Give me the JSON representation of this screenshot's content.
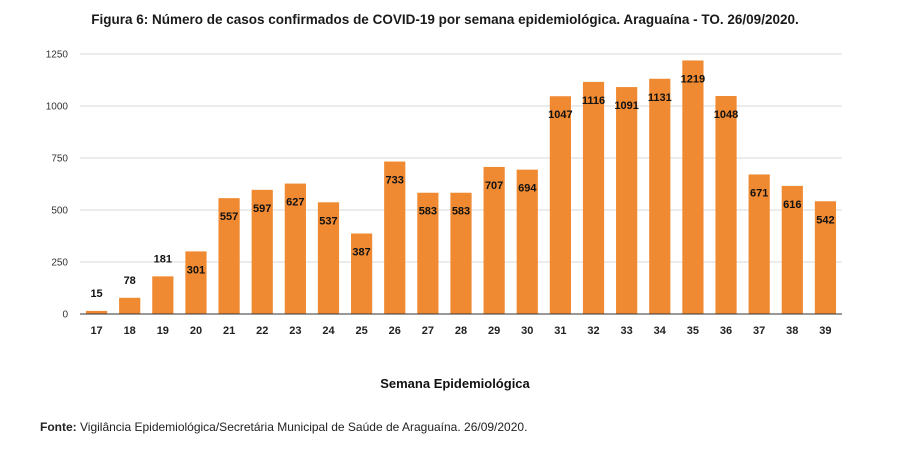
{
  "chart_data": {
    "type": "bar",
    "title": "Figura 6: Número de casos confirmados de COVID-19 por semana epidemiológica. Araguaína - TO. 26/09/2020.",
    "xlabel": "Semana Epidemiológica",
    "ylabel": "",
    "ylim": [
      0,
      1250
    ],
    "yticks": [
      "0",
      "250",
      "500",
      "750",
      "1000",
      "1250"
    ],
    "grid": true,
    "bar_color": "#f08a32",
    "categories": [
      "17",
      "18",
      "19",
      "20",
      "21",
      "22",
      "23",
      "24",
      "25",
      "26",
      "27",
      "28",
      "29",
      "30",
      "31",
      "32",
      "33",
      "34",
      "35",
      "36",
      "37",
      "38",
      "39"
    ],
    "values": [
      15,
      78,
      181,
      301,
      557,
      597,
      627,
      537,
      387,
      733,
      583,
      583,
      707,
      694,
      1047,
      1116,
      1091,
      1131,
      1219,
      1048,
      671,
      616,
      542
    ],
    "value_labels": [
      "15",
      "78",
      "181",
      "301",
      "557",
      "597",
      "627",
      "537",
      "387",
      "733",
      "583",
      "583",
      "707",
      "694",
      "1047",
      "1116",
      "1091",
      "1131",
      "1219",
      "1048",
      "671",
      "616",
      "542"
    ]
  },
  "source": {
    "label": "Fonte:",
    "text": " Vigilância Epidemiológica/Secretária Municipal de Saúde de Araguaína. 26/09/2020."
  }
}
